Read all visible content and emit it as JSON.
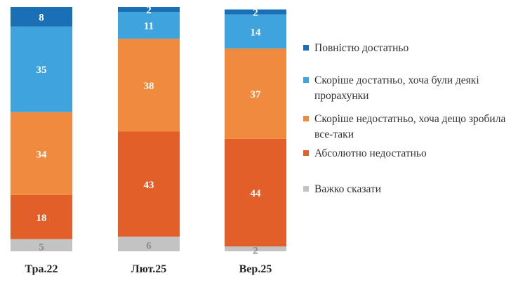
{
  "chart_data": {
    "type": "stacked_bar",
    "categories": [
      "Тра.22",
      "Лют.25",
      "Вер.25"
    ],
    "series": [
      {
        "name": "Повністю достатньо",
        "color": "#1a6fb5",
        "values": [
          8,
          2,
          2
        ]
      },
      {
        "name": "Скоріше достатньо, хоча були деякі прорахунки",
        "color": "#3fa4dd",
        "values": [
          35,
          11,
          14
        ]
      },
      {
        "name": "Скоріше недостатньо, хоча дещо зробила все-таки",
        "color": "#f08a3e",
        "values": [
          34,
          38,
          37
        ]
      },
      {
        "name": "Абсолютно недостатньо",
        "color": "#e35f2a",
        "values": [
          18,
          43,
          44
        ]
      },
      {
        "name": "Важко сказати",
        "color": "#c3c3c3",
        "values": [
          5,
          6,
          2
        ]
      }
    ],
    "legend_position": "right",
    "ylim": [
      0,
      100
    ]
  }
}
